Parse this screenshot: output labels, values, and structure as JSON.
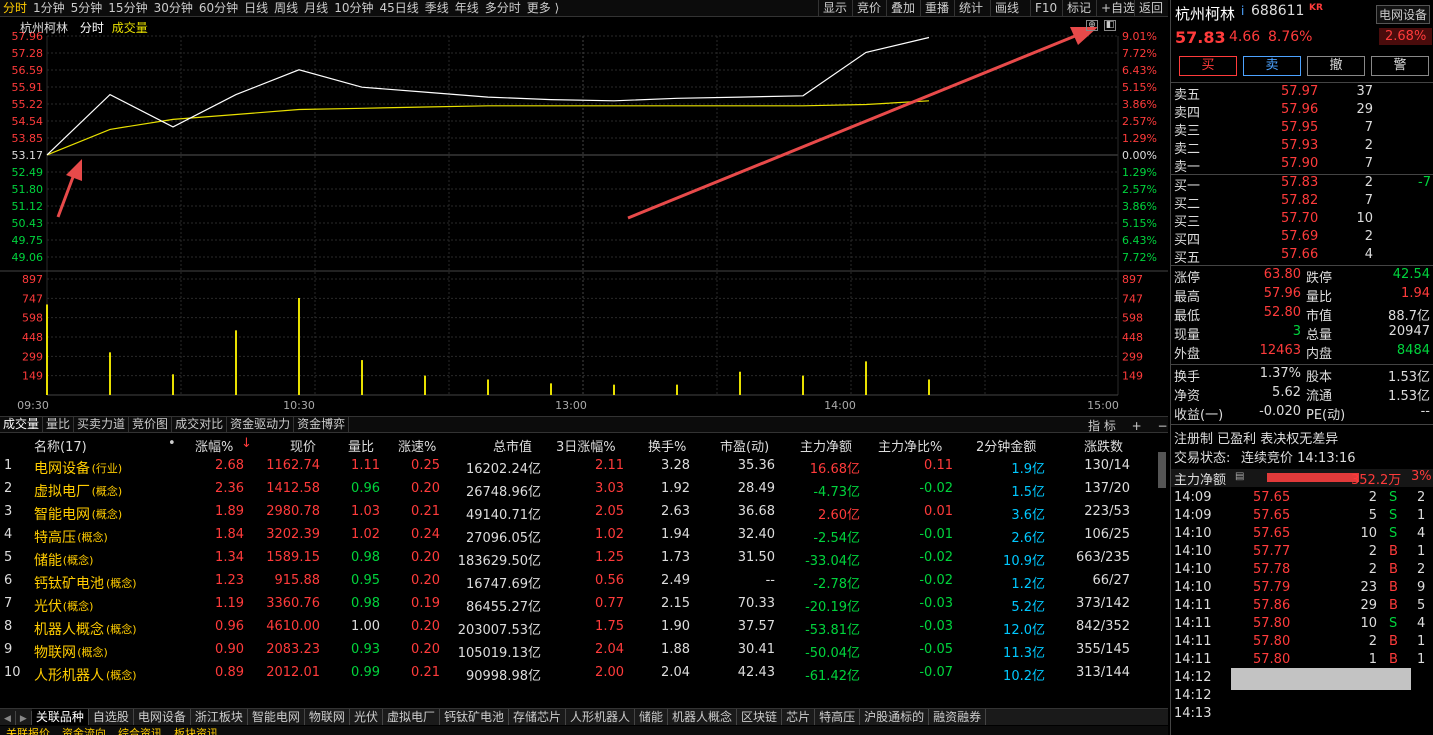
{
  "toolbar": {
    "periods": [
      "分时",
      "1分钟",
      "5分钟",
      "15分钟",
      "30分钟",
      "60分钟",
      "日线",
      "周线",
      "月线",
      "10分钟",
      "45日线",
      "季线",
      "年线",
      "多分时",
      "更多 ⟩"
    ],
    "right_buttons": [
      "显示",
      "竞价",
      "叠加",
      "重播",
      "统计",
      "画线",
      "F10",
      "标记",
      "+自选",
      "返回"
    ]
  },
  "chart": {
    "header_name": "杭州柯林",
    "header_mode": "分时",
    "header_vol": "成交量",
    "price_labels": [
      "57.96",
      "57.28",
      "56.59",
      "55.91",
      "55.22",
      "54.54",
      "53.85",
      "53.17",
      "52.49",
      "51.80",
      "51.12",
      "50.43",
      "49.75",
      "49.06"
    ],
    "pct_labels": [
      "9.01%",
      "7.72%",
      "6.43%",
      "5.15%",
      "3.86%",
      "2.57%",
      "1.29%",
      "0.00%",
      "1.29%",
      "2.57%",
      "3.86%",
      "5.15%",
      "6.43%",
      "7.72%"
    ],
    "vol_labels": [
      "897",
      "747",
      "598",
      "448",
      "299",
      "149"
    ],
    "time_labels": [
      "09:30",
      "10:30",
      "13:00",
      "14:00",
      "15:00"
    ],
    "colors": {
      "price_line": "#ffffff",
      "avg_line": "#e8e000",
      "vol_bar": "#e8e000",
      "grid": "#2a2a2a",
      "up": "#ff3b3b",
      "down": "#00d43d",
      "arrow": "#e84a4a"
    }
  },
  "chart_data": {
    "type": "line",
    "x": [
      "09:30",
      "09:45",
      "10:00",
      "10:15",
      "10:30",
      "10:45",
      "11:00",
      "11:15",
      "11:30",
      "13:00",
      "13:15",
      "13:30",
      "13:45",
      "14:00",
      "14:15",
      "14:30",
      "14:45",
      "15:00"
    ],
    "series": [
      {
        "values": [
          53.17,
          55.6,
          54.3,
          55.6,
          56.6,
          55.9,
          55.7,
          55.5,
          55.4,
          55.35,
          55.45,
          55.5,
          55.55,
          57.3,
          57.9,
          null,
          null,
          null
        ]
      },
      {
        "values": [
          53.17,
          54.2,
          54.6,
          54.8,
          55.0,
          55.05,
          55.1,
          55.15,
          55.15,
          55.15,
          55.15,
          55.15,
          55.15,
          55.2,
          55.35,
          null,
          null,
          null
        ]
      }
    ],
    "volume_values": [
      700,
      330,
      160,
      500,
      750,
      270,
      150,
      120,
      90,
      80,
      80,
      180,
      150,
      260,
      120,
      null,
      null,
      null
    ],
    "ylim": [
      49.06,
      57.96
    ],
    "vol_ylim": [
      0,
      897
    ]
  },
  "subtabs": [
    "成交量",
    "量比",
    "买卖力道",
    "竞价图",
    "成交对比",
    "资金驱动力",
    "资金博弈"
  ],
  "subtabs_right": [
    "指 标",
    "+",
    "−"
  ],
  "table": {
    "headers": [
      "名称(17)",
      "•",
      "涨幅%",
      "现价",
      "量比",
      "涨速%",
      "总市值",
      "3日涨幅%",
      "换手%",
      "市盈(动)",
      "主力净额",
      "主力净比%",
      "2分钟金额",
      "涨跌数"
    ],
    "rows": [
      {
        "no": "1",
        "name": "电网设备",
        "tag": "(行业)",
        "chg": "2.68",
        "price": "1162.74",
        "ratio": "1.11",
        "speed": "0.25",
        "cap": "16202.24亿",
        "chg3": "2.11",
        "turn": "3.28",
        "pe": "35.36",
        "net": "16.68亿",
        "netpct": "0.11",
        "amt2": "1.9亿",
        "updown": "130/14"
      },
      {
        "no": "2",
        "name": "虚拟电厂",
        "tag": "(概念)",
        "chg": "2.36",
        "price": "1412.58",
        "ratio": "0.96",
        "speed": "0.20",
        "cap": "26748.96亿",
        "chg3": "3.03",
        "turn": "1.92",
        "pe": "28.49",
        "net": "-4.73亿",
        "netpct": "-0.02",
        "amt2": "1.5亿",
        "updown": "137/20"
      },
      {
        "no": "3",
        "name": "智能电网",
        "tag": "(概念)",
        "chg": "1.89",
        "price": "2980.78",
        "ratio": "1.03",
        "speed": "0.21",
        "cap": "49140.71亿",
        "chg3": "2.05",
        "turn": "2.63",
        "pe": "36.68",
        "net": "2.60亿",
        "netpct": "0.01",
        "amt2": "3.6亿",
        "updown": "223/53"
      },
      {
        "no": "4",
        "name": "特高压",
        "tag": "(概念)",
        "chg": "1.84",
        "price": "3202.39",
        "ratio": "1.02",
        "speed": "0.24",
        "cap": "27096.05亿",
        "chg3": "1.02",
        "turn": "1.94",
        "pe": "32.40",
        "net": "-2.54亿",
        "netpct": "-0.01",
        "amt2": "2.6亿",
        "updown": "106/25"
      },
      {
        "no": "5",
        "name": "储能",
        "tag": "(概念)",
        "chg": "1.34",
        "price": "1589.15",
        "ratio": "0.98",
        "speed": "0.20",
        "cap": "183629.50亿",
        "chg3": "1.25",
        "turn": "1.73",
        "pe": "31.50",
        "net": "-33.04亿",
        "netpct": "-0.02",
        "amt2": "10.9亿",
        "updown": "663/235"
      },
      {
        "no": "6",
        "name": "钙钛矿电池",
        "tag": "(概念)",
        "chg": "1.23",
        "price": "915.88",
        "ratio": "0.95",
        "speed": "0.20",
        "cap": "16747.69亿",
        "chg3": "0.56",
        "turn": "2.49",
        "pe": "--",
        "net": "-2.78亿",
        "netpct": "-0.02",
        "amt2": "1.2亿",
        "updown": "66/27"
      },
      {
        "no": "7",
        "name": "光伏",
        "tag": "(概念)",
        "chg": "1.19",
        "price": "3360.76",
        "ratio": "0.98",
        "speed": "0.19",
        "cap": "86455.27亿",
        "chg3": "0.77",
        "turn": "2.15",
        "pe": "70.33",
        "net": "-20.19亿",
        "netpct": "-0.03",
        "amt2": "5.2亿",
        "updown": "373/142"
      },
      {
        "no": "8",
        "name": "机器人概念",
        "tag": "(概念)",
        "chg": "0.96",
        "price": "4610.00",
        "ratio": "1.00",
        "speed": "0.20",
        "cap": "203007.53亿",
        "chg3": "1.75",
        "turn": "1.90",
        "pe": "37.57",
        "net": "-53.81亿",
        "netpct": "-0.03",
        "amt2": "12.0亿",
        "updown": "842/352"
      },
      {
        "no": "9",
        "name": "物联网",
        "tag": "(概念)",
        "chg": "0.90",
        "price": "2083.23",
        "ratio": "0.93",
        "speed": "0.20",
        "cap": "105019.13亿",
        "chg3": "2.04",
        "turn": "1.88",
        "pe": "30.41",
        "net": "-50.04亿",
        "netpct": "-0.05",
        "amt2": "11.3亿",
        "updown": "355/145"
      },
      {
        "no": "10",
        "name": "人形机器人",
        "tag": "(概念)",
        "chg": "0.89",
        "price": "2012.01",
        "ratio": "0.99",
        "speed": "0.21",
        "cap": "90998.98亿",
        "chg3": "2.00",
        "turn": "2.04",
        "pe": "42.43",
        "net": "-61.42亿",
        "netpct": "-0.07",
        "amt2": "10.2亿",
        "updown": "313/144"
      }
    ]
  },
  "bottom_tabs": [
    "关联品种",
    "自选股",
    "电网设备",
    "浙江板块",
    "智能电网",
    "物联网",
    "光伏",
    "虚拟电厂",
    "钙钛矿电池",
    "存储芯片",
    "人形机器人",
    "储能",
    "机器人概念",
    "区块链",
    "芯片",
    "特高压",
    "沪股通标的",
    "融资融券"
  ],
  "bottom_tabs2": [
    "关联报价",
    "资金流向",
    "综合资讯",
    "板块资讯"
  ],
  "right": {
    "stock_name": "杭州柯林",
    "stock_code": "688611",
    "stock_tag": "KR",
    "sector_name": "电网设备",
    "sector_pct": "2.68%",
    "price": "57.83",
    "change": "4.66",
    "change_pct": "8.76%",
    "buttons": [
      "买",
      "卖",
      "撤",
      "警"
    ],
    "asks": [
      {
        "label": "卖五",
        "price": "57.97",
        "vol": "37"
      },
      {
        "label": "卖四",
        "price": "57.96",
        "vol": "29"
      },
      {
        "label": "卖三",
        "price": "57.95",
        "vol": "7"
      },
      {
        "label": "卖二",
        "price": "57.93",
        "vol": "2"
      },
      {
        "label": "卖一",
        "price": "57.90",
        "vol": "7"
      }
    ],
    "bids": [
      {
        "label": "买一",
        "price": "57.83",
        "vol": "2",
        "extra": "-7"
      },
      {
        "label": "买二",
        "price": "57.82",
        "vol": "7",
        "extra": ""
      },
      {
        "label": "买三",
        "price": "57.70",
        "vol": "10",
        "extra": ""
      },
      {
        "label": "买四",
        "price": "57.69",
        "vol": "2",
        "extra": ""
      },
      {
        "label": "买五",
        "price": "57.66",
        "vol": "4",
        "extra": ""
      }
    ],
    "stats": [
      {
        "l1": "涨停",
        "v1": "63.80",
        "c1": "red",
        "l2": "跌停",
        "v2": "42.54",
        "c2": "green"
      },
      {
        "l1": "最高",
        "v1": "57.96",
        "c1": "red",
        "l2": "量比",
        "v2": "1.94",
        "c2": "red"
      },
      {
        "l1": "最低",
        "v1": "52.80",
        "c1": "red",
        "l2": "市值",
        "v2": "88.7亿",
        "c2": "white"
      },
      {
        "l1": "现量",
        "v1": "3",
        "c1": "green",
        "l2": "总量",
        "v2": "20947",
        "c2": "white"
      },
      {
        "l1": "外盘",
        "v1": "12463",
        "c1": "red",
        "l2": "内盘",
        "v2": "8484",
        "c2": "green"
      }
    ],
    "stats2": [
      {
        "l1": "换手",
        "v1": "1.37%",
        "l2": "股本",
        "v2": "1.53亿"
      },
      {
        "l1": "净资",
        "v1": "5.62",
        "l2": "流通",
        "v2": "1.53亿"
      },
      {
        "l1": "收益(一)",
        "v1": "-0.020",
        "l2": "PE(动)",
        "v2": "--"
      }
    ],
    "info_line": "注册制 已盈利 表决权无差异",
    "status_label": "交易状态:",
    "status_value": "连续竞价 14:13:16",
    "main_net_label": "主力净额",
    "main_net_value": "352.2万",
    "main_net_pct": "3%",
    "ticks": [
      {
        "t": "14:09",
        "p": "57.65",
        "v": "2",
        "s": "S",
        "n": "2"
      },
      {
        "t": "14:09",
        "p": "57.65",
        "v": "5",
        "s": "S",
        "n": "1"
      },
      {
        "t": "14:10",
        "p": "57.65",
        "v": "10",
        "s": "S",
        "n": "4"
      },
      {
        "t": "14:10",
        "p": "57.77",
        "v": "2",
        "s": "B",
        "n": "1"
      },
      {
        "t": "14:10",
        "p": "57.78",
        "v": "2",
        "s": "B",
        "n": "2"
      },
      {
        "t": "14:10",
        "p": "57.79",
        "v": "23",
        "s": "B",
        "n": "9"
      },
      {
        "t": "14:11",
        "p": "57.86",
        "v": "29",
        "s": "B",
        "n": "5"
      },
      {
        "t": "14:11",
        "p": "57.80",
        "v": "10",
        "s": "S",
        "n": "4"
      },
      {
        "t": "14:11",
        "p": "57.80",
        "v": "2",
        "s": "B",
        "n": "1"
      },
      {
        "t": "14:11",
        "p": "57.80",
        "v": "1",
        "s": "B",
        "n": "1"
      },
      {
        "t": "14:12",
        "p": "",
        "v": "",
        "s": "",
        "n": ""
      },
      {
        "t": "14:12",
        "p": "",
        "v": "",
        "s": "",
        "n": ""
      },
      {
        "t": "14:13",
        "p": "",
        "v": "",
        "s": "",
        "n": ""
      }
    ]
  }
}
